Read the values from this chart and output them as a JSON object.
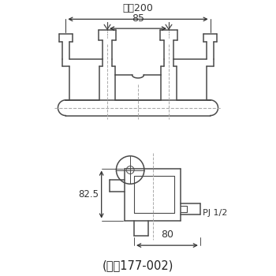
{
  "bg_color": "#ffffff",
  "line_color": "#4a4a4a",
  "dim_color": "#333333",
  "dash_color": "#aaaaaa",
  "title": "(図は177-002)",
  "title_fontsize": 10.5,
  "dim_200_label": "最大200",
  "dim_85_label": "85",
  "dim_82_5_label": "82.5",
  "dim_80_label": "80",
  "pj_label": "PJ 1/2"
}
